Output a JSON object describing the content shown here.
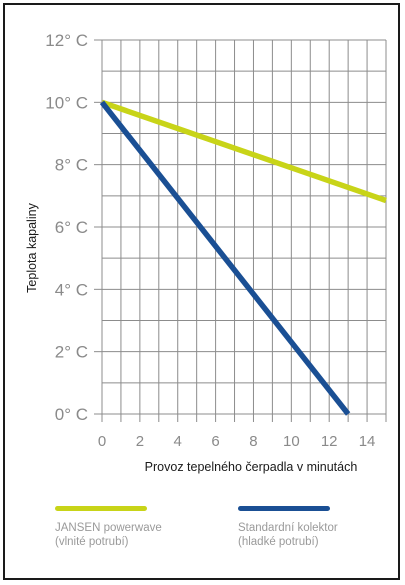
{
  "chart_data": {
    "type": "line",
    "xlabel": "Provoz tepelného čerpadla v minutách",
    "ylabel": "Teplota kapaliny",
    "xlim": [
      0,
      15
    ],
    "ylim": [
      0,
      12
    ],
    "x_ticks": [
      "0",
      "2",
      "4",
      "6",
      "8",
      "10",
      "12",
      "14"
    ],
    "y_ticks": [
      "0° C",
      "2° C",
      "4° C",
      "6° C",
      "8° C",
      "10° C",
      "12° C"
    ],
    "grid": true,
    "series": [
      {
        "name": "JANSEN powerwave",
        "name_line2": "(vlnité potrubí)",
        "color": "#c8d418",
        "x": [
          0,
          15
        ],
        "y": [
          10,
          6.85
        ]
      },
      {
        "name": "Standardní kolektor",
        "name_line2": "(hladké potrubí)",
        "color": "#1a4f94",
        "x": [
          0,
          13
        ],
        "y": [
          10,
          0
        ]
      }
    ]
  }
}
